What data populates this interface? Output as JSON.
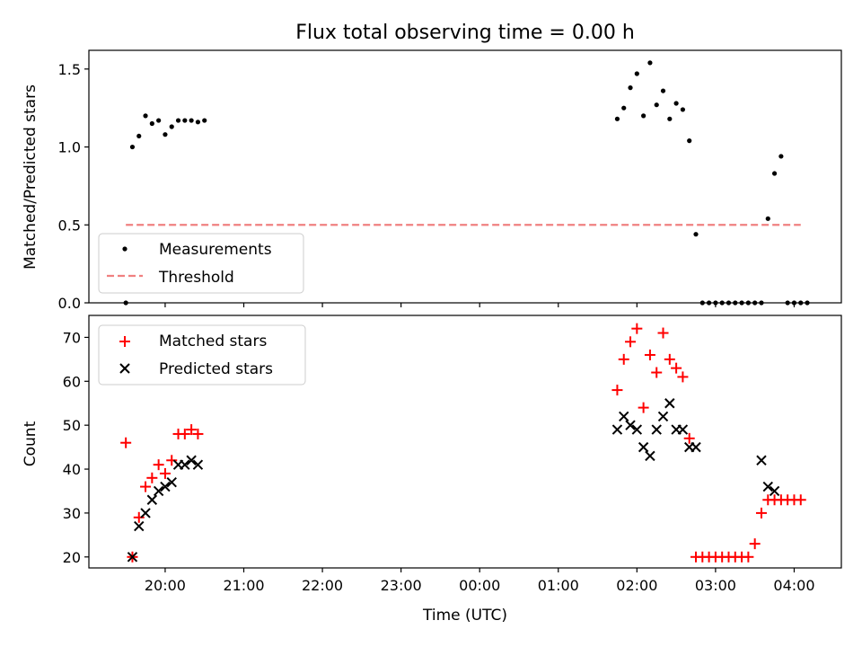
{
  "figure_title": "Flux total observing time = 0.00 h",
  "colors": {
    "measurement": "#000000",
    "threshold": "#f08080",
    "matched": "#ff0000",
    "predicted": "#000000",
    "axes": "#000000"
  },
  "chart_data": [
    {
      "type": "scatter",
      "title": "Flux total observing time = 0.00 h",
      "xlabel": "",
      "ylabel": "Matched/Predicted stars",
      "xlim_hours": [
        19.03,
        28.6
      ],
      "ylim": [
        0,
        1.62
      ],
      "yticks": [
        0.0,
        0.5,
        1.0,
        1.5
      ],
      "ytick_labels": [
        "0.0",
        "0.5",
        "1.0",
        "1.5"
      ],
      "xticks_hours": [
        20,
        21,
        22,
        23,
        24,
        25,
        26,
        27,
        28
      ],
      "xtick_labels": [
        "",
        "",
        "",
        "",
        "",
        "",
        "",
        "",
        ""
      ],
      "legend_position": "lower-left",
      "grid": false,
      "series": [
        {
          "name": "Measurements",
          "kind": "dot",
          "x": [
            "19:30",
            "19:35",
            "19:40",
            "19:45",
            "19:50",
            "19:55",
            "20:00",
            "20:05",
            "20:10",
            "20:15",
            "20:20",
            "20:25",
            "20:30",
            "20:35",
            "20:40",
            "01:45",
            "01:50",
            "01:55",
            "02:00",
            "02:05",
            "02:10",
            "02:15",
            "02:20",
            "02:25",
            "02:30",
            "02:35",
            "02:40",
            "02:45",
            "02:50",
            "02:55",
            "03:00",
            "03:05",
            "03:10",
            "03:15",
            "03:20",
            "03:25",
            "03:30",
            "03:35",
            "03:40",
            "03:45",
            "03:50",
            "03:55",
            "04:00",
            "04:05",
            "04:10"
          ],
          "y": [
            0.0,
            1.0,
            1.07,
            1.2,
            1.15,
            1.17,
            1.08,
            1.13,
            1.17,
            1.17,
            1.17,
            1.16,
            1.17,
            null,
            null,
            1.18,
            1.25,
            1.38,
            1.47,
            1.2,
            1.54,
            1.27,
            1.36,
            1.18,
            1.28,
            1.24,
            1.04,
            0.44,
            0.0,
            0.0,
            0.0,
            0.0,
            0.0,
            0.0,
            0.0,
            0.0,
            0.0,
            0.0,
            0.54,
            0.83,
            0.94,
            0.0,
            0.0,
            0.0,
            0.0
          ]
        },
        {
          "name": "Threshold",
          "kind": "dashed-line",
          "x": [
            "19:30",
            "04:05"
          ],
          "y": [
            0.5,
            0.5
          ]
        }
      ]
    },
    {
      "type": "scatter",
      "title": "",
      "xlabel": "Time (UTC)",
      "ylabel": "Count",
      "xlim_hours": [
        19.03,
        28.6
      ],
      "ylim": [
        17.5,
        75
      ],
      "yticks": [
        20,
        30,
        40,
        50,
        60,
        70
      ],
      "ytick_labels": [
        "20",
        "30",
        "40",
        "50",
        "60",
        "70"
      ],
      "xticks_hours": [
        20,
        21,
        22,
        23,
        24,
        25,
        26,
        27,
        28
      ],
      "xtick_labels": [
        "20:00",
        "21:00",
        "22:00",
        "23:00",
        "00:00",
        "01:00",
        "02:00",
        "03:00",
        "04:00"
      ],
      "legend_position": "upper-left",
      "grid": false,
      "series": [
        {
          "name": "Matched stars",
          "kind": "plus",
          "x": [
            "19:30",
            "19:35",
            "19:40",
            "19:45",
            "19:50",
            "19:55",
            "20:00",
            "20:05",
            "20:10",
            "20:15",
            "20:20",
            "20:25",
            "20:30",
            "20:35",
            "01:45",
            "01:50",
            "01:55",
            "02:00",
            "02:05",
            "02:10",
            "02:15",
            "02:20",
            "02:25",
            "02:30",
            "02:35",
            "02:40",
            "02:45",
            "02:50",
            "02:55",
            "03:00",
            "03:05",
            "03:10",
            "03:15",
            "03:20",
            "03:25",
            "03:30",
            "03:35",
            "03:40",
            "03:45",
            "03:50",
            "03:55",
            "04:00",
            "04:05",
            "04:10"
          ],
          "y": [
            46,
            20,
            29,
            36,
            38,
            41,
            39,
            42,
            48,
            48,
            49,
            48,
            null,
            null,
            58,
            65,
            69,
            72,
            54,
            66,
            62,
            71,
            65,
            63,
            61,
            47,
            20,
            20,
            20,
            20,
            20,
            20,
            20,
            20,
            20,
            23,
            30,
            33,
            33,
            33,
            33,
            33,
            33,
            null
          ]
        },
        {
          "name": "Predicted stars",
          "kind": "x",
          "x": [
            "19:35",
            "19:40",
            "19:45",
            "19:50",
            "19:55",
            "20:00",
            "20:05",
            "20:10",
            "20:15",
            "20:20",
            "20:25",
            "01:45",
            "01:50",
            "01:55",
            "02:00",
            "02:05",
            "02:10",
            "02:15",
            "02:20",
            "02:25",
            "02:30",
            "02:35",
            "02:40",
            "02:45",
            "03:35",
            "03:40",
            "03:45"
          ],
          "y": [
            20,
            27,
            30,
            33,
            35,
            36,
            37,
            41,
            41,
            42,
            41,
            49,
            52,
            50,
            49,
            45,
            43,
            49,
            52,
            55,
            49,
            49,
            45,
            45,
            42,
            36,
            35
          ]
        }
      ]
    }
  ]
}
